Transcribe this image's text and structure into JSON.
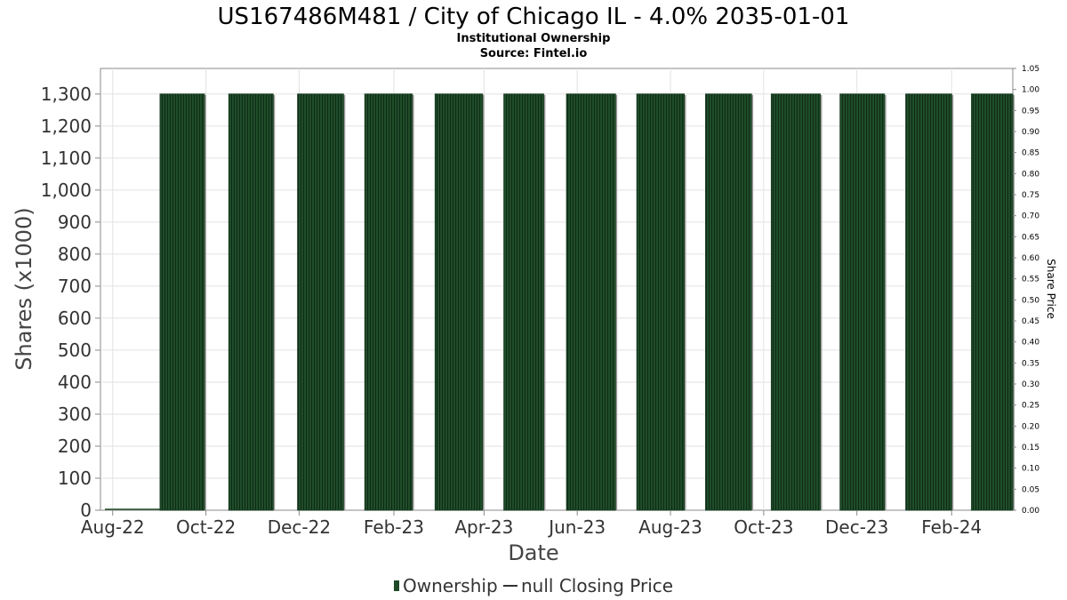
{
  "chart_data": {
    "type": "bar",
    "title": "US167486M481 / City of Chicago IL - 4.0% 2035-01-01",
    "subtitle_lines": [
      "Institutional Ownership",
      "Source: Fintel.io"
    ],
    "xlabel": "Date",
    "ylabel": "Shares (x1000)",
    "y2label": "Share Price",
    "x_tick_labels": [
      "Aug-22",
      "Oct-22",
      "Dec-22",
      "Feb-23",
      "Apr-23",
      "Jun-23",
      "Aug-23",
      "Oct-23",
      "Dec-23",
      "Feb-24"
    ],
    "y_tick_labels": [
      "0",
      "100",
      "200",
      "300",
      "400",
      "500",
      "600",
      "700",
      "800",
      "900",
      "1,000",
      "1,100",
      "1,200",
      "1,300"
    ],
    "y2_tick_labels": [
      "0.00",
      "0.05",
      "0.10",
      "0.15",
      "0.20",
      "0.25",
      "0.30",
      "0.35",
      "0.40",
      "0.45",
      "0.50",
      "0.55",
      "0.60",
      "0.65",
      "0.70",
      "0.75",
      "0.80",
      "0.85",
      "0.90",
      "0.95",
      "1.00",
      "1.05"
    ],
    "ylim": [
      0,
      1380
    ],
    "y2lim": [
      0,
      1.05
    ],
    "x_range": [
      "2022-07-24",
      "2024-03-12"
    ],
    "grid": true,
    "legend_position": "bottom",
    "legend": [
      "Ownership",
      "null Closing Price"
    ],
    "series": [
      {
        "name": "Ownership",
        "color": "#1e4a28",
        "bars": [
          {
            "start": "2022-09-01",
            "end": "2022-09-30",
            "value": 1300
          },
          {
            "start": "2022-10-16",
            "end": "2022-11-14",
            "value": 1300
          },
          {
            "start": "2022-11-30",
            "end": "2022-12-30",
            "value": 1300
          },
          {
            "start": "2023-01-13",
            "end": "2023-02-13",
            "value": 1300
          },
          {
            "start": "2023-02-28",
            "end": "2023-03-31",
            "value": 1300
          },
          {
            "start": "2023-04-14",
            "end": "2023-05-10",
            "value": 1300
          },
          {
            "start": "2023-05-25",
            "end": "2023-06-26",
            "value": 1300
          },
          {
            "start": "2023-07-10",
            "end": "2023-08-10",
            "value": 1300
          },
          {
            "start": "2023-08-24",
            "end": "2023-09-23",
            "value": 1300
          },
          {
            "start": "2023-10-06",
            "end": "2023-11-07",
            "value": 1300
          },
          {
            "start": "2023-11-20",
            "end": "2023-12-19",
            "value": 1300
          },
          {
            "start": "2024-01-02",
            "end": "2024-02-01",
            "value": 1300
          },
          {
            "start": "2024-02-14",
            "end": "2024-03-12",
            "value": 1300
          }
        ]
      },
      {
        "name": "null Closing Price",
        "color": "#333333",
        "values": []
      }
    ]
  }
}
